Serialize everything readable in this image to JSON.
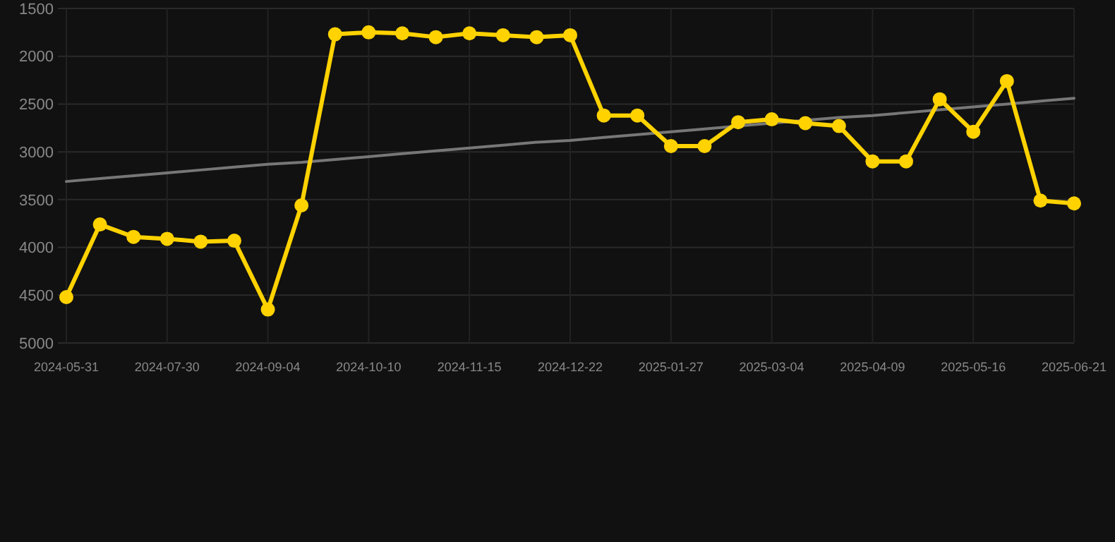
{
  "chart_data": {
    "type": "line",
    "categories": [
      "2024-05-31",
      null,
      null,
      "2024-07-30",
      null,
      null,
      "2024-09-04",
      null,
      null,
      "2024-10-10",
      null,
      null,
      "2024-11-15",
      null,
      null,
      "2024-12-22",
      null,
      null,
      "2025-01-27",
      null,
      null,
      "2025-03-04",
      null,
      null,
      "2025-04-09",
      null,
      null,
      "2025-05-16",
      null,
      null,
      "2025-06-21"
    ],
    "series": [
      {
        "color": "#ffd200",
        "marker": "circle",
        "values": [
          4520,
          3760,
          3890,
          3910,
          3940,
          3930,
          4650,
          3560,
          1770,
          1750,
          1760,
          1800,
          1760,
          1780,
          1800,
          1780,
          2620,
          2620,
          2940,
          2940,
          2690,
          2660,
          2700,
          2730,
          3100,
          3100,
          2450,
          2790,
          2260,
          3510,
          3540
        ]
      },
      {
        "type": "line",
        "color": "#777777",
        "marker": "none",
        "values": [
          3310,
          3280,
          3250,
          3220,
          3190,
          3160,
          3130,
          3110,
          3080,
          3050,
          3020,
          2990,
          2960,
          2930,
          2900,
          2880,
          2850,
          2820,
          2790,
          2760,
          2730,
          2700,
          2670,
          2640,
          2620,
          2590,
          2560,
          2530,
          2500,
          2470,
          2440
        ]
      }
    ],
    "ylim": [
      5000,
      1500
    ],
    "yticks": [
      1500,
      2000,
      2500,
      3000,
      3500,
      4000,
      4500,
      5000
    ],
    "grid": true
  }
}
